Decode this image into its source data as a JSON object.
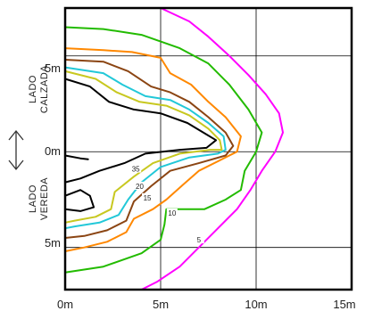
{
  "chart_data": {
    "type": "contour",
    "title": "",
    "xlabel": "",
    "ylabel": "",
    "x_ticks": [
      "0m",
      "5m",
      "10m",
      "15m"
    ],
    "y_ticks": [
      "5m",
      "0m",
      "5m"
    ],
    "xlim": [
      0,
      15
    ],
    "ylim": [
      -7.2,
      7.5
    ],
    "grid": true,
    "side_labels": {
      "top": [
        "LADO",
        "CALZADA"
      ],
      "bottom": [
        "LADO",
        "VEREDA"
      ]
    },
    "double_arrow_icon": "vertical-double-arrow-icon",
    "series": [
      {
        "level_label": "5",
        "color": "#ff00ff",
        "points": [
          [
            5.0,
            7.5
          ],
          [
            6.5,
            6.8
          ],
          [
            7.5,
            6.0
          ],
          [
            8.6,
            5.0
          ],
          [
            9.6,
            4.0
          ],
          [
            10.5,
            3.0
          ],
          [
            11.2,
            2.0
          ],
          [
            11.4,
            1.0
          ],
          [
            11.0,
            0.0
          ],
          [
            10.3,
            -1.0
          ],
          [
            9.7,
            -2.0
          ],
          [
            9.0,
            -3.0
          ],
          [
            8.0,
            -4.0
          ],
          [
            7.0,
            -5.0
          ],
          [
            6.0,
            -6.0
          ],
          [
            4.8,
            -6.8
          ],
          [
            4.0,
            -7.2
          ]
        ]
      },
      {
        "level_label": "10",
        "color": "#22bb00",
        "points": [
          [
            0,
            6.5
          ],
          [
            2,
            6.4
          ],
          [
            4,
            6.1
          ],
          [
            6,
            5.4
          ],
          [
            7.5,
            4.6
          ],
          [
            8.6,
            3.5
          ],
          [
            9.6,
            2.2
          ],
          [
            10.3,
            1.0
          ],
          [
            10.0,
            0.0
          ],
          [
            9.4,
            -1.0
          ],
          [
            9.2,
            -2.0
          ],
          [
            8.4,
            -2.5
          ],
          [
            7.3,
            -3.0
          ],
          [
            5.3,
            -3.0
          ],
          [
            5.2,
            -3.8
          ],
          [
            5.0,
            -4.6
          ],
          [
            4.0,
            -5.3
          ],
          [
            2.0,
            -6.0
          ],
          [
            0,
            -6.3
          ]
        ]
      },
      {
        "level_label": "15",
        "color": "#ff8800",
        "points": [
          [
            0,
            5.4
          ],
          [
            2,
            5.3
          ],
          [
            3.5,
            5.2
          ],
          [
            5.0,
            4.9
          ],
          [
            5.5,
            4.1
          ],
          [
            6.6,
            3.5
          ],
          [
            7.5,
            2.6
          ],
          [
            8.4,
            1.8
          ],
          [
            9.2,
            0.8
          ],
          [
            9.0,
            0.0
          ],
          [
            8.0,
            -0.5
          ],
          [
            7.0,
            -1.0
          ],
          [
            6.2,
            -1.7
          ],
          [
            5.3,
            -2.5
          ],
          [
            4.6,
            -3.0
          ],
          [
            3.6,
            -3.5
          ],
          [
            3.2,
            -4.2
          ],
          [
            2.2,
            -4.7
          ],
          [
            1.0,
            -5.0
          ],
          [
            0,
            -5.2
          ]
        ]
      },
      {
        "level_label": "",
        "color": "#8b4513",
        "points": [
          [
            0,
            4.8
          ],
          [
            2,
            4.7
          ],
          [
            3.3,
            4.2
          ],
          [
            4.5,
            3.4
          ],
          [
            5.5,
            3.1
          ],
          [
            6.5,
            2.6
          ],
          [
            7.5,
            1.8
          ],
          [
            8.4,
            1.0
          ],
          [
            8.8,
            0.3
          ],
          [
            8.4,
            -0.2
          ],
          [
            7.0,
            -0.6
          ],
          [
            5.5,
            -1.0
          ],
          [
            4.5,
            -1.8
          ],
          [
            3.6,
            -2.6
          ],
          [
            3.2,
            -3.6
          ],
          [
            2.2,
            -4.1
          ],
          [
            1.0,
            -4.4
          ],
          [
            0,
            -4.5
          ]
        ]
      },
      {
        "level_label": "",
        "color": "#22c8d8",
        "points": [
          [
            0,
            4.4
          ],
          [
            2,
            4.1
          ],
          [
            3.0,
            3.5
          ],
          [
            4.2,
            2.9
          ],
          [
            5.5,
            2.7
          ],
          [
            6.5,
            2.2
          ],
          [
            7.5,
            1.5
          ],
          [
            8.3,
            0.8
          ],
          [
            8.4,
            0.1
          ],
          [
            8.0,
            -0.1
          ],
          [
            6.5,
            -0.3
          ],
          [
            5.0,
            -0.8
          ],
          [
            4.0,
            -1.6
          ],
          [
            3.3,
            -2.5
          ],
          [
            2.8,
            -3.3
          ],
          [
            1.8,
            -3.7
          ],
          [
            0.5,
            -3.9
          ],
          [
            0,
            -4.0
          ]
        ]
      },
      {
        "level_label": "20",
        "color": "#c8c820",
        "points": [
          [
            0,
            4.2
          ],
          [
            1.6,
            3.8
          ],
          [
            2.7,
            3.1
          ],
          [
            3.9,
            2.6
          ],
          [
            5.3,
            2.4
          ],
          [
            6.5,
            1.9
          ],
          [
            7.5,
            1.2
          ],
          [
            8.1,
            0.6
          ],
          [
            8.2,
            0.1
          ],
          [
            7.6,
            0.1
          ],
          [
            6.0,
            -0.1
          ],
          [
            4.6,
            -0.6
          ],
          [
            3.6,
            -1.3
          ],
          [
            2.6,
            -2.1
          ],
          [
            2.4,
            -3.0
          ],
          [
            1.6,
            -3.4
          ],
          [
            0.5,
            -3.6
          ],
          [
            0,
            -3.7
          ]
        ]
      },
      {
        "level_label": "35",
        "color": "#000000",
        "points": [
          [
            0,
            3.8
          ],
          [
            1.3,
            3.4
          ],
          [
            2.3,
            2.6
          ],
          [
            3.6,
            2.2
          ],
          [
            5.0,
            2.0
          ],
          [
            6.4,
            1.5
          ],
          [
            7.4,
            0.9
          ],
          [
            7.9,
            0.6
          ],
          [
            7.4,
            0.2
          ],
          [
            6.0,
            0.1
          ],
          [
            4.2,
            -0.1
          ],
          [
            3.1,
            -0.6
          ],
          [
            1.8,
            -1.0
          ],
          [
            0.8,
            -1.4
          ],
          [
            0,
            -1.6
          ]
        ]
      }
    ],
    "extra_segments": [
      {
        "color": "#000000",
        "points": [
          [
            0,
            -0.2
          ],
          [
            0.8,
            -0.35
          ],
          [
            1.2,
            -0.4
          ]
        ]
      },
      {
        "color": "#000000",
        "points": [
          [
            0,
            -2.3
          ],
          [
            0.8,
            -2.0
          ],
          [
            1.3,
            -2.3
          ],
          [
            1.5,
            -2.9
          ],
          [
            0.8,
            -3.1
          ],
          [
            0,
            -3.0
          ]
        ]
      }
    ]
  }
}
